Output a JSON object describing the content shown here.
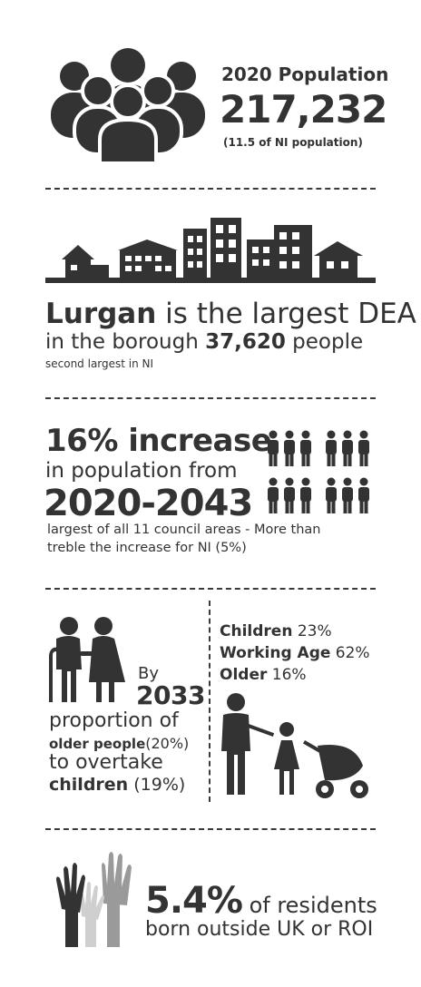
{
  "colors": {
    "dark": "#333333",
    "mid_grey": "#9a9a9a",
    "light_grey": "#cfcfcf"
  },
  "population": {
    "icon": "people-group-icon",
    "label": "2020 Population",
    "value": "217,232",
    "note": "(11.5 of NI population)"
  },
  "dea": {
    "icon": "town-skyline-icon",
    "name": "Lurgan",
    "line1_rest": " is the largest DEA",
    "line2_prefix": "in the borough ",
    "count": "37,620",
    "line2_suffix": " people",
    "line3": "second largest in NI"
  },
  "growth": {
    "icon": "population-figures-icon",
    "headline": "16% increase",
    "line2": "in population from",
    "period": "2020-2043",
    "note_line1": "largest of all 11 council areas - More than",
    "note_line2": "treble the increase for NI (5%)"
  },
  "ageing": {
    "icon": "elderly-couple-icon",
    "by": "By",
    "year": "2033",
    "line1": "proportion of",
    "older_people": "older people",
    "older_pct": "(20%)",
    "line3": "to overtake",
    "children": "children",
    "children_pct": " (19%)"
  },
  "age_breakdown": {
    "icon": "family-stroller-icon",
    "items": [
      {
        "label": "Children",
        "value": " 23%"
      },
      {
        "label": "Working Age",
        "value": " 62%"
      },
      {
        "label": "Older",
        "value": " 16%"
      }
    ]
  },
  "origin": {
    "icon": "raised-hands-icon",
    "value": "5.4%",
    "line1": " of residents",
    "line2": "born outside UK or ROI"
  }
}
